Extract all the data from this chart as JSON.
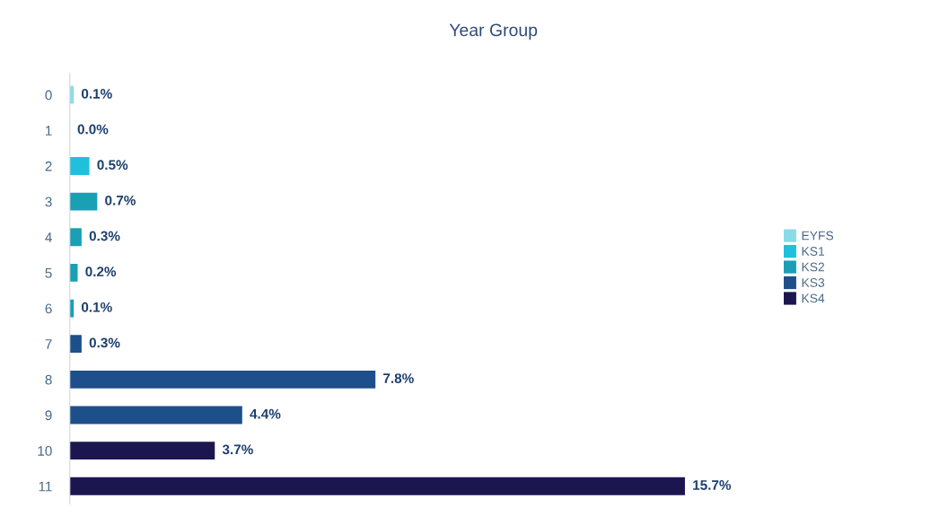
{
  "chart_data": {
    "type": "bar",
    "orientation": "horizontal",
    "title": "Year Group",
    "categories": [
      "0",
      "1",
      "2",
      "3",
      "4",
      "5",
      "6",
      "7",
      "8",
      "9",
      "10",
      "11"
    ],
    "series": [
      {
        "name": "EYFS",
        "color": "#8adbe8",
        "values": [
          0.1,
          null,
          null,
          null,
          null,
          null,
          null,
          null,
          null,
          null,
          null,
          null
        ],
        "value_labels": [
          "0.1%",
          null,
          null,
          null,
          null,
          null,
          null,
          null,
          null,
          null,
          null,
          null
        ]
      },
      {
        "name": "KS1",
        "color": "#1fc0dc",
        "values": [
          null,
          0.0,
          0.5,
          null,
          null,
          null,
          null,
          null,
          null,
          null,
          null,
          null
        ],
        "value_labels": [
          null,
          "0.0%",
          "0.5%",
          null,
          null,
          null,
          null,
          null,
          null,
          null,
          null,
          null
        ]
      },
      {
        "name": "KS2",
        "color": "#1a9fb5",
        "values": [
          null,
          null,
          null,
          0.7,
          0.3,
          0.2,
          0.1,
          null,
          null,
          null,
          null,
          null
        ],
        "value_labels": [
          null,
          null,
          null,
          "0.7%",
          "0.3%",
          "0.2%",
          "0.1%",
          null,
          null,
          null,
          null,
          null
        ]
      },
      {
        "name": "KS3",
        "color": "#1d4f8a",
        "values": [
          null,
          null,
          null,
          null,
          null,
          null,
          null,
          0.3,
          7.8,
          4.4,
          null,
          null
        ],
        "value_labels": [
          null,
          null,
          null,
          null,
          null,
          null,
          null,
          "0.3%",
          "7.8%",
          "4.4%",
          null,
          null
        ]
      },
      {
        "name": "KS4",
        "color": "#1c1650",
        "values": [
          null,
          null,
          null,
          null,
          null,
          null,
          null,
          null,
          null,
          null,
          3.7,
          15.7
        ],
        "value_labels": [
          null,
          null,
          null,
          null,
          null,
          null,
          null,
          null,
          null,
          null,
          "3.7%",
          "15.7%"
        ]
      }
    ],
    "legend": "right",
    "grid": false
  }
}
